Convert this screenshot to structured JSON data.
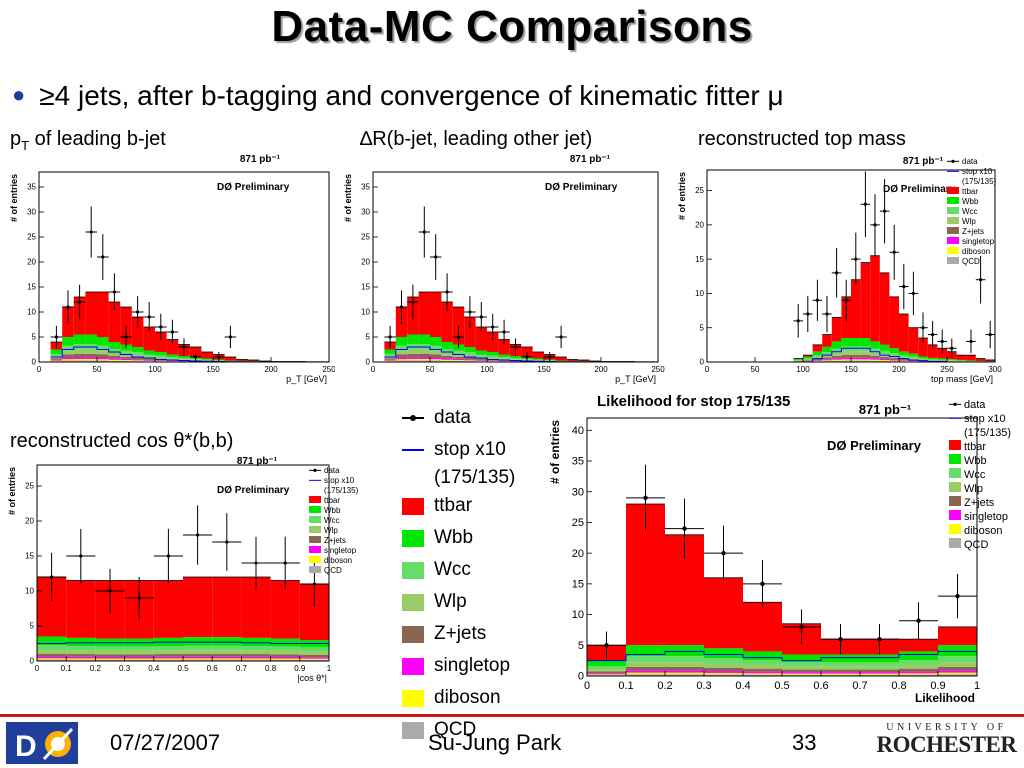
{
  "slide": {
    "title": "Data-MC Comparisons",
    "bullet": "≥4 jets, after b-tagging and convergence of kinematic fitter μ",
    "footer": {
      "date": "07/27/2007",
      "author": "Su-Jung Park",
      "page": "33"
    },
    "logos": {
      "left": "DØ",
      "right_top": "UNIVERSITY OF",
      "right_bottom": "ROCHESTER"
    }
  },
  "panel_labels": {
    "pt_main": "p",
    "pt_sub": "T",
    "pt_rest": " of leading b-jet",
    "dr": "∆R(b-jet, leading other jet)",
    "mtop": "reconstructed top mass",
    "cos": "reconstructed cos θ*(b,b)"
  },
  "colors": {
    "ttbar": "#ff0000",
    "Wbb": "#00e600",
    "Wcc": "#66dd66",
    "Wlp": "#99cc66",
    "Z+jets": "#8a6650",
    "singletop": "#ff00ff",
    "diboson": "#ffff00",
    "QCD": "#aaaaaa",
    "signal": "#0000ff"
  },
  "legend": {
    "data": "data",
    "signal_line1": "stop x10",
    "signal_line2": "(175/135)",
    "entries": [
      "ttbar",
      "Wbb",
      "Wcc",
      "Wlp",
      "Z+jets",
      "singletop",
      "diboson",
      "QCD"
    ],
    "entry_labels": [
      "ttbar",
      "Wbb",
      "Wcc",
      "Wlp",
      "Z+jets",
      "singletop",
      "diboson",
      "QCD"
    ]
  },
  "chart_data": [
    {
      "id": "pt",
      "type": "bar",
      "title": "",
      "xlabel": "p_T [GeV]",
      "ylabel": "# of entries",
      "lumi": "871 pb⁻¹",
      "preliminary": "DØ Preliminary",
      "xlim": [
        0,
        250
      ],
      "ylim": [
        0,
        38
      ],
      "xticks": [
        0,
        50,
        100,
        150,
        200,
        250
      ],
      "xtick_labels": [
        "0",
        "50",
        "100",
        "150",
        "200",
        "250"
      ],
      "yticks": [
        0,
        5,
        10,
        15,
        20,
        25,
        30,
        35
      ],
      "bins": [
        10,
        20,
        30,
        40,
        50,
        60,
        70,
        80,
        90,
        100,
        110,
        120,
        130,
        140,
        150,
        160,
        170,
        180,
        190,
        200,
        210,
        220,
        230,
        240,
        250
      ],
      "stack_total": [
        4,
        11,
        13,
        14,
        14,
        12,
        11,
        9,
        7,
        6,
        4.5,
        3.5,
        3,
        2,
        1.5,
        1,
        0.5,
        0.4,
        0.2,
        0.1,
        0.1,
        0.1,
        0.05,
        0.05
      ],
      "non_ttbar": [
        2.5,
        5,
        5.5,
        5.5,
        5,
        4,
        3.5,
        3,
        2.3,
        2,
        1.5,
        1.2,
        1,
        0.7,
        0.5,
        0.3,
        0.2,
        0.15,
        0.1,
        0.05,
        0.05,
        0.05,
        0.02,
        0.02
      ],
      "signal": [
        1,
        2.5,
        3,
        3,
        2.5,
        2,
        1.5,
        1,
        0.8,
        0.5,
        0.4,
        0.3,
        0.2,
        0.15,
        0.1,
        0.05,
        0.05,
        0.02,
        0.02,
        0,
        0,
        0,
        0,
        0
      ],
      "data_points": [
        [
          15,
          5
        ],
        [
          25,
          11
        ],
        [
          35,
          12
        ],
        [
          45,
          26
        ],
        [
          55,
          21
        ],
        [
          65,
          14
        ],
        [
          75,
          5
        ],
        [
          85,
          10
        ],
        [
          95,
          9
        ],
        [
          105,
          7
        ],
        [
          115,
          6
        ],
        [
          125,
          3
        ],
        [
          135,
          1
        ],
        [
          155,
          1
        ],
        [
          165,
          5
        ]
      ]
    },
    {
      "id": "dr",
      "type": "bar",
      "title": "",
      "xlabel": "p_T [GeV]",
      "ylabel": "# of entries",
      "lumi": "871 pb⁻¹",
      "preliminary": "DØ Preliminary",
      "xlim": [
        0,
        250
      ],
      "ylim": [
        0,
        38
      ],
      "xticks": [
        0,
        50,
        100,
        150,
        200,
        250
      ],
      "xtick_labels": [
        "0",
        "50",
        "100",
        "150",
        "200",
        "250"
      ],
      "yticks": [
        0,
        5,
        10,
        15,
        20,
        25,
        30,
        35
      ],
      "bins": [
        10,
        20,
        30,
        40,
        50,
        60,
        70,
        80,
        90,
        100,
        110,
        120,
        130,
        140,
        150,
        160,
        170,
        180,
        190,
        200,
        210,
        220,
        230,
        240,
        250
      ],
      "stack_total": [
        4,
        11,
        13,
        14,
        14,
        12,
        11,
        9,
        7,
        6,
        4.5,
        3.5,
        3,
        2,
        1.5,
        1,
        0.5,
        0.4,
        0.2,
        0.1,
        0.1,
        0.1,
        0.05,
        0.05
      ],
      "non_ttbar": [
        2.5,
        5,
        5.5,
        5.5,
        5,
        4,
        3.5,
        3,
        2.3,
        2,
        1.5,
        1.2,
        1,
        0.7,
        0.5,
        0.3,
        0.2,
        0.15,
        0.1,
        0.05,
        0.05,
        0.05,
        0.02,
        0.02
      ],
      "signal": [
        1,
        2.5,
        3,
        3,
        2.5,
        2,
        1.5,
        1,
        0.8,
        0.5,
        0.4,
        0.3,
        0.2,
        0.15,
        0.1,
        0.05,
        0.05,
        0.02,
        0.02,
        0,
        0,
        0,
        0,
        0
      ],
      "data_points": [
        [
          15,
          5
        ],
        [
          25,
          11
        ],
        [
          35,
          12
        ],
        [
          45,
          26
        ],
        [
          55,
          21
        ],
        [
          65,
          14
        ],
        [
          75,
          5
        ],
        [
          85,
          10
        ],
        [
          95,
          9
        ],
        [
          105,
          7
        ],
        [
          115,
          6
        ],
        [
          125,
          3
        ],
        [
          135,
          1
        ],
        [
          155,
          1
        ],
        [
          165,
          5
        ]
      ]
    },
    {
      "id": "mtop",
      "type": "bar",
      "title": "",
      "xlabel": "top mass [GeV]",
      "ylabel": "# of entries",
      "lumi": "871 pb⁻¹",
      "preliminary": "DØ Preliminary",
      "xlim": [
        0,
        300
      ],
      "ylim": [
        0,
        28
      ],
      "xticks": [
        0,
        50,
        100,
        150,
        200,
        250,
        300
      ],
      "xtick_labels": [
        "0",
        "50",
        "100",
        "150",
        "200",
        "250",
        "300"
      ],
      "yticks": [
        0,
        5,
        10,
        15,
        20,
        25
      ],
      "bins": [
        90,
        100,
        110,
        120,
        130,
        140,
        150,
        160,
        170,
        180,
        190,
        200,
        210,
        220,
        230,
        240,
        250,
        260,
        270,
        280,
        290,
        300
      ],
      "stack_total": [
        0.5,
        1,
        2.5,
        4,
        6.5,
        9.5,
        12,
        14.5,
        15.5,
        13,
        9.5,
        7,
        5,
        3.5,
        2.5,
        2,
        1.5,
        1,
        1,
        0.5,
        0.3
      ],
      "non_ttbar": [
        0.4,
        0.8,
        1.5,
        2.2,
        3,
        3.5,
        3.5,
        3.5,
        3,
        2.5,
        2,
        1.5,
        1.2,
        0.8,
        0.6,
        0.5,
        0.4,
        0.3,
        0.2,
        0.15,
        0.1
      ],
      "signal": [
        0,
        0,
        0.5,
        1,
        1.5,
        2,
        2,
        2,
        1.5,
        1,
        0.8,
        0.5,
        0.3,
        0.2,
        0.1,
        0.1,
        0,
        0,
        0,
        0,
        0
      ],
      "data_points": [
        [
          95,
          6
        ],
        [
          105,
          7
        ],
        [
          115,
          9
        ],
        [
          125,
          7
        ],
        [
          135,
          13
        ],
        [
          145,
          9
        ],
        [
          155,
          15
        ],
        [
          165,
          23
        ],
        [
          175,
          20
        ],
        [
          185,
          22
        ],
        [
          195,
          16
        ],
        [
          205,
          11
        ],
        [
          215,
          10
        ],
        [
          225,
          5
        ],
        [
          235,
          4
        ],
        [
          245,
          3
        ],
        [
          255,
          2
        ],
        [
          275,
          3
        ],
        [
          285,
          12
        ],
        [
          295,
          4
        ]
      ]
    },
    {
      "id": "cos",
      "type": "bar",
      "title": "",
      "xlabel": "|cos θ*|",
      "ylabel": "# of entries",
      "lumi": "871 pb⁻¹",
      "preliminary": "DØ Preliminary",
      "xlim": [
        0,
        1
      ],
      "ylim": [
        0,
        28
      ],
      "xticks": [
        0,
        0.1,
        0.2,
        0.3,
        0.4,
        0.5,
        0.6,
        0.7,
        0.8,
        0.9,
        1
      ],
      "xtick_labels": [
        "0",
        "0.1",
        "0.2",
        "0.3",
        "0.4",
        "0.5",
        "0.6",
        "0.7",
        "0.8",
        "0.9",
        "1"
      ],
      "yticks": [
        0,
        5,
        10,
        15,
        20,
        25
      ],
      "bins": [
        0.0,
        0.1,
        0.2,
        0.3,
        0.4,
        0.5,
        0.6,
        0.7,
        0.8,
        0.9,
        1.0
      ],
      "stack_total": [
        12,
        11.5,
        11.5,
        11.5,
        11.5,
        12,
        12,
        12,
        11.5,
        11
      ],
      "non_ttbar": [
        3.5,
        3.3,
        3.2,
        3.2,
        3.3,
        3.4,
        3.4,
        3.3,
        3.2,
        3
      ],
      "signal": [
        2.5,
        2.6,
        2.6,
        2.6,
        2.7,
        2.7,
        2.7,
        2.6,
        2.5,
        2.5
      ],
      "data_points": [
        [
          0.05,
          12
        ],
        [
          0.15,
          15
        ],
        [
          0.25,
          10
        ],
        [
          0.35,
          9
        ],
        [
          0.45,
          15
        ],
        [
          0.55,
          18
        ],
        [
          0.65,
          17
        ],
        [
          0.75,
          14
        ],
        [
          0.85,
          14
        ],
        [
          0.95,
          11
        ]
      ]
    },
    {
      "id": "likelihood",
      "type": "bar",
      "title": "Likelihood for stop 175/135",
      "xlabel": "Likelihood",
      "ylabel": "# of entries",
      "lumi": "871 pb⁻¹",
      "preliminary": "DØ Preliminary",
      "xlim": [
        0,
        1
      ],
      "ylim": [
        0,
        42
      ],
      "xticks": [
        0,
        0.1,
        0.2,
        0.3,
        0.4,
        0.5,
        0.6,
        0.7,
        0.8,
        0.9,
        1
      ],
      "xtick_labels": [
        "0",
        "0.1",
        "0.2",
        "0.3",
        "0.4",
        "0.5",
        "0.6",
        "0.7",
        "0.8",
        "0.9",
        "1"
      ],
      "yticks": [
        0,
        5,
        10,
        15,
        20,
        25,
        30,
        35,
        40
      ],
      "bins": [
        0.0,
        0.1,
        0.2,
        0.3,
        0.4,
        0.5,
        0.6,
        0.7,
        0.8,
        0.9,
        1.0
      ],
      "stack_total": [
        5,
        28,
        23,
        16,
        12,
        8.5,
        6,
        6,
        6,
        8
      ],
      "non_ttbar": [
        2.5,
        5,
        5,
        4.5,
        4,
        3.5,
        3.5,
        3.5,
        4,
        5
      ],
      "signal": [
        2.5,
        3.5,
        4,
        3.5,
        3,
        2.5,
        3,
        3,
        3.5,
        4
      ],
      "data_points": [
        [
          0.05,
          5
        ],
        [
          0.15,
          29
        ],
        [
          0.25,
          24
        ],
        [
          0.35,
          20
        ],
        [
          0.45,
          15
        ],
        [
          0.55,
          8
        ],
        [
          0.65,
          6
        ],
        [
          0.75,
          6
        ],
        [
          0.85,
          9
        ],
        [
          0.95,
          13
        ]
      ]
    }
  ]
}
